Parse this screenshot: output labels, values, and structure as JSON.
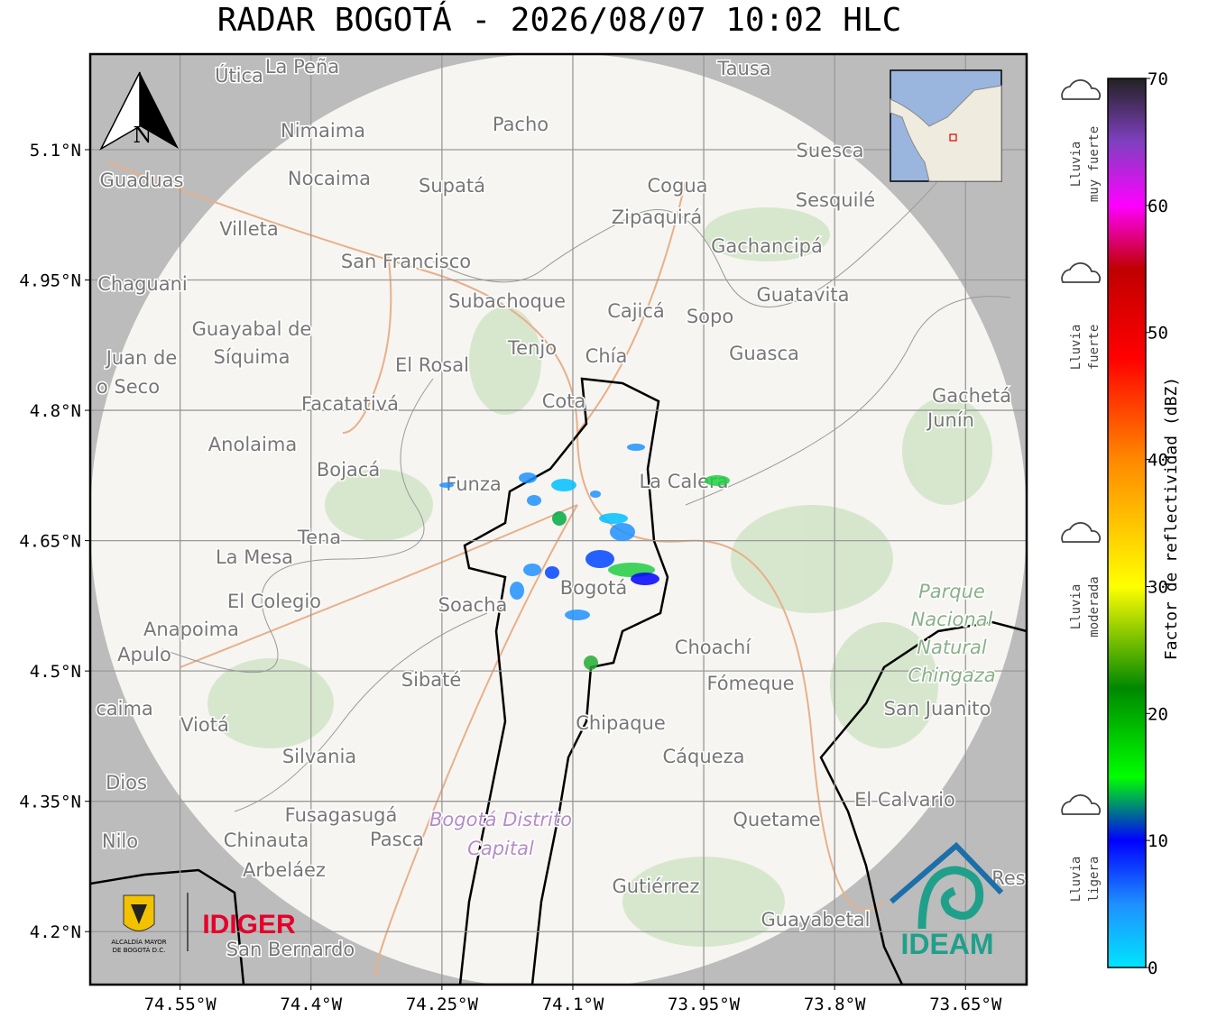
{
  "map": {
    "title": "RADAR BOGOTÁ - 2026/08/07 10:02 HLC",
    "xlim": [
      -74.653,
      -73.58
    ],
    "ylim": [
      4.139,
      5.21
    ],
    "xticks": [
      {
        "value": -74.55,
        "label": "74.55°W"
      },
      {
        "value": -74.4,
        "label": "74.4°W"
      },
      {
        "value": -74.25,
        "label": "74.25°W"
      },
      {
        "value": -74.1,
        "label": "74.1°W"
      },
      {
        "value": -73.95,
        "label": "73.95°W"
      },
      {
        "value": -73.8,
        "label": "73.8°W"
      },
      {
        "value": -73.65,
        "label": "73.65°W"
      }
    ],
    "yticks": [
      {
        "value": 5.1,
        "label": "5.1°N"
      },
      {
        "value": 4.95,
        "label": "4.95°N"
      },
      {
        "value": 4.8,
        "label": "4.8°N"
      },
      {
        "value": 4.65,
        "label": "4.65°N"
      },
      {
        "value": 4.5,
        "label": "4.5°N"
      },
      {
        "value": 4.35,
        "label": "4.35°N"
      },
      {
        "value": 4.2,
        "label": "4.2°N"
      }
    ],
    "grid": true,
    "north": "N",
    "places": [
      "Útica",
      "La Peña",
      "Tausa",
      "Pacho",
      "Nimaima",
      "Guaduas",
      "Nocaima",
      "Supatá",
      "Cogua",
      "Suesca",
      "Sesquilé",
      "Zipaquirá",
      "Villeta",
      "Gachancipá",
      "San Francisco",
      "Chaguani",
      "Guatavita",
      "Subachoque",
      "Cajicá",
      "Sopo",
      "Guayabal de",
      "Síquima",
      "Tenjo",
      "Chía",
      "Guasca",
      "Juan de",
      "o Seco",
      "El Rosal",
      "Facatativá",
      "Cota",
      "Gachetá",
      "Junín",
      "Anolaima",
      "Bojacá",
      "Funza",
      "La Calera",
      "Tena",
      "La Mesa",
      "Soacha",
      "Bogotá",
      "El Colegio",
      "Anapoima",
      "Apulo",
      "Choachí",
      "Sibaté",
      "Fómeque",
      "San Juanito",
      "caima",
      "Viotá",
      "Chipaque",
      "Silvania",
      "Cáqueza",
      "Dios",
      "El Calvario",
      "Fusagasugá",
      "Quetame",
      "Chinauta",
      "Pasca",
      "Nilo",
      "Arbeláez",
      "Gutiérrez",
      "Guayabetal",
      "San Bernardo",
      "Res"
    ],
    "park": [
      "Parque",
      "Nacional",
      "Natural",
      "Chingaza"
    ],
    "district": [
      "Bogotá Distrito",
      "Capital"
    ],
    "logos": {
      "idiger": "IDIGER",
      "ideam": "IDEAM",
      "alcaldia": [
        "ALCALDÍA MAYOR",
        "DE BOGOTÁ D.C."
      ]
    }
  },
  "colorbar": {
    "label": "Factor de reflectividad (dBZ)",
    "lim": [
      0,
      70
    ],
    "ticks": [
      0,
      10,
      20,
      30,
      40,
      50,
      60,
      70
    ],
    "stops": [
      {
        "value": 0,
        "color": "#00e5ff"
      },
      {
        "value": 5,
        "color": "#1e90ff"
      },
      {
        "value": 10,
        "color": "#0000ff"
      },
      {
        "value": 15,
        "color": "#00ff00"
      },
      {
        "value": 22,
        "color": "#008800"
      },
      {
        "value": 30,
        "color": "#ffff00"
      },
      {
        "value": 40,
        "color": "#ff8800"
      },
      {
        "value": 48,
        "color": "#ff0000"
      },
      {
        "value": 55,
        "color": "#c00000"
      },
      {
        "value": 60,
        "color": "#ff00ff"
      },
      {
        "value": 65,
        "color": "#8040c0"
      },
      {
        "value": 70,
        "color": "#222222"
      }
    ]
  },
  "rain_levels": [
    {
      "lines": [
        "Lluvia",
        "muy fuerte"
      ]
    },
    {
      "lines": [
        "Lluvia",
        "fuerte"
      ]
    },
    {
      "lines": [
        "Lluvia",
        "moderada"
      ]
    },
    {
      "lines": [
        "Lluvia",
        "ligera"
      ]
    }
  ]
}
